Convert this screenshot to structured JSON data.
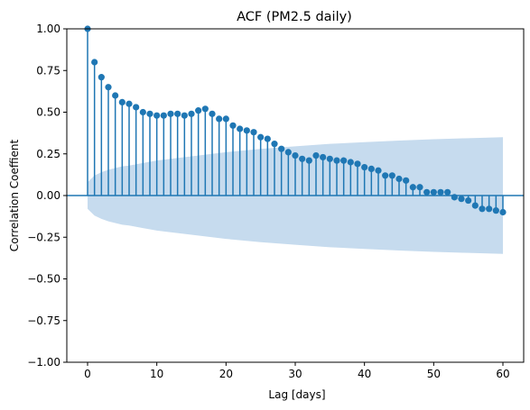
{
  "chart_data": {
    "type": "scatter",
    "subtype": "stem",
    "title": "ACF (PM2.5 daily)",
    "xlabel": "Lag [days]",
    "ylabel": "Correlation Coeffient",
    "xlim": [
      -3,
      63
    ],
    "ylim": [
      -1.0,
      1.0
    ],
    "x_ticks": [
      0,
      10,
      20,
      30,
      40,
      50,
      60
    ],
    "x_tick_labels": [
      "0",
      "10",
      "20",
      "30",
      "40",
      "50",
      "60"
    ],
    "y_ticks": [
      -1.0,
      -0.75,
      -0.5,
      -0.25,
      0.0,
      0.25,
      0.5,
      0.75,
      1.0
    ],
    "y_tick_labels": [
      "−1.00",
      "−0.75",
      "−0.50",
      "−0.25",
      "0.00",
      "0.25",
      "0.50",
      "0.75",
      "1.00"
    ],
    "grid": false,
    "colors": {
      "marker": "#1f77b4",
      "confidence_band": "#c6dbee",
      "zero_line": "#1f77b4"
    },
    "lags": [
      0,
      1,
      2,
      3,
      4,
      5,
      6,
      7,
      8,
      9,
      10,
      11,
      12,
      13,
      14,
      15,
      16,
      17,
      18,
      19,
      20,
      21,
      22,
      23,
      24,
      25,
      26,
      27,
      28,
      29,
      30,
      31,
      32,
      33,
      34,
      35,
      36,
      37,
      38,
      39,
      40,
      41,
      42,
      43,
      44,
      45,
      46,
      47,
      48,
      49,
      50,
      51,
      52,
      53,
      54,
      55,
      56,
      57,
      58,
      59,
      60
    ],
    "acf": [
      1.0,
      0.8,
      0.71,
      0.65,
      0.6,
      0.56,
      0.55,
      0.53,
      0.5,
      0.49,
      0.48,
      0.48,
      0.49,
      0.49,
      0.48,
      0.49,
      0.51,
      0.52,
      0.49,
      0.46,
      0.46,
      0.42,
      0.4,
      0.39,
      0.38,
      0.35,
      0.34,
      0.31,
      0.28,
      0.26,
      0.24,
      0.22,
      0.21,
      0.24,
      0.23,
      0.22,
      0.21,
      0.21,
      0.2,
      0.19,
      0.17,
      0.16,
      0.15,
      0.12,
      0.12,
      0.1,
      0.09,
      0.05,
      0.05,
      0.02,
      0.02,
      0.02,
      0.02,
      -0.01,
      -0.02,
      -0.03,
      -0.06,
      -0.08,
      -0.08,
      -0.09,
      -0.1
    ],
    "confidence_band": {
      "x": [
        0,
        1,
        2,
        3,
        4,
        5,
        6,
        8,
        10,
        12,
        15,
        20,
        25,
        30,
        35,
        40,
        45,
        50,
        55,
        60
      ],
      "upper": [
        0.08,
        0.12,
        0.14,
        0.155,
        0.165,
        0.175,
        0.18,
        0.195,
        0.21,
        0.22,
        0.235,
        0.26,
        0.28,
        0.295,
        0.31,
        0.32,
        0.33,
        0.338,
        0.344,
        0.35
      ],
      "lower": [
        -0.08,
        -0.12,
        -0.14,
        -0.155,
        -0.165,
        -0.175,
        -0.18,
        -0.195,
        -0.21,
        -0.22,
        -0.235,
        -0.26,
        -0.28,
        -0.295,
        -0.31,
        -0.32,
        -0.33,
        -0.338,
        -0.344,
        -0.35
      ]
    }
  }
}
